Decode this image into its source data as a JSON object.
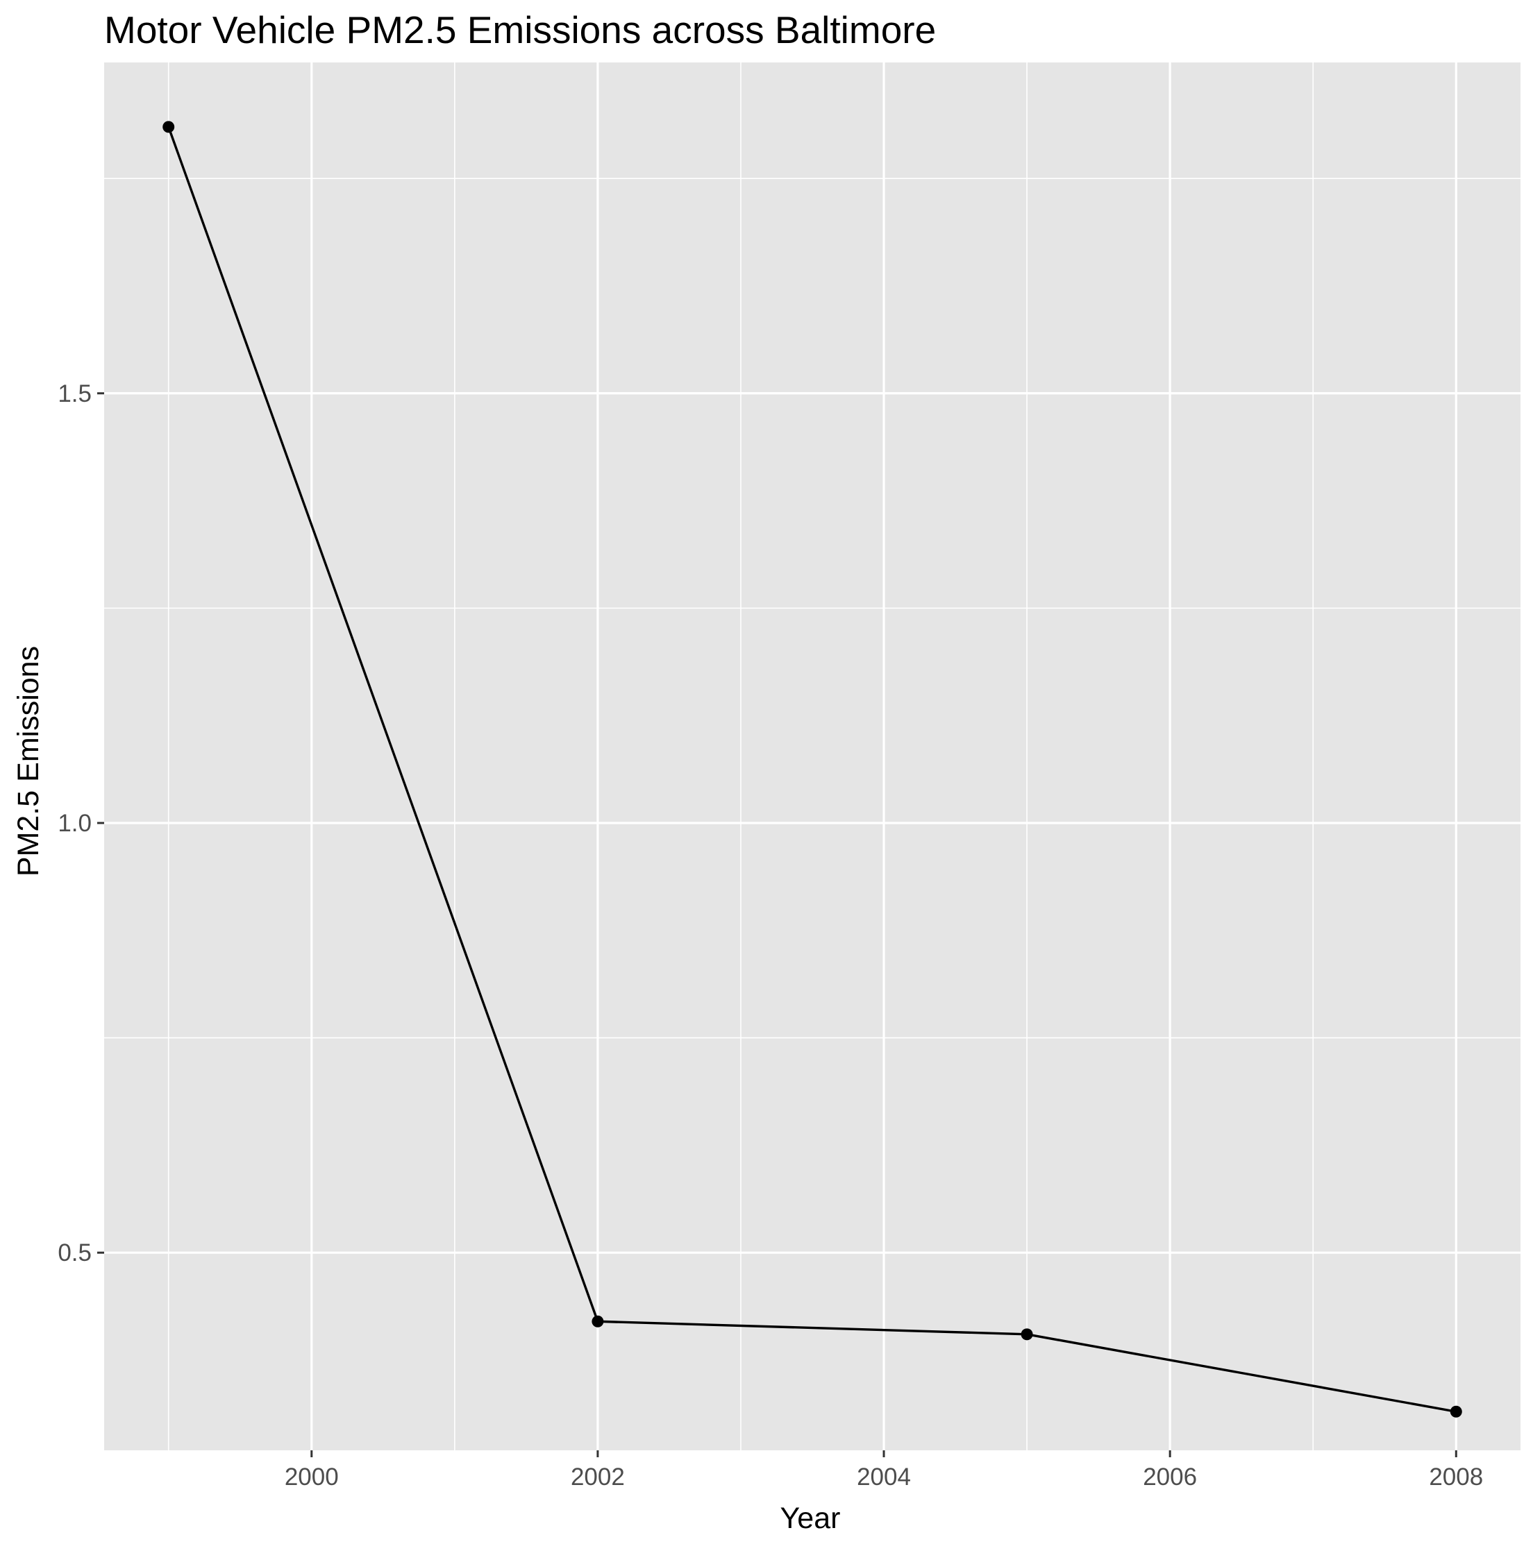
{
  "chart_data": {
    "type": "line",
    "title": "Motor Vehicle PM2.5 Emissions across Baltimore",
    "xlabel": "Year",
    "ylabel": "PM2.5 Emissions",
    "series": [
      {
        "x": [
          1999,
          2002,
          2005,
          2008
        ],
        "values": [
          1.81,
          0.42,
          0.405,
          0.315
        ]
      }
    ],
    "xlim": [
      1998.55,
      2008.45
    ],
    "ylim": [
      0.27,
      1.885
    ],
    "x_ticks": [
      2000,
      2002,
      2004,
      2006,
      2008
    ],
    "x_tick_labels": [
      "2000",
      "2002",
      "2004",
      "2006",
      "2008"
    ],
    "y_ticks": [
      0.5,
      1.0,
      1.5
    ],
    "y_tick_labels": [
      "0.5",
      "1.0",
      "1.5"
    ],
    "grid": true,
    "legend": "none",
    "colors": {
      "panel_background": "#e5e5e5",
      "grid_line": "#ffffff",
      "series_line": "#000000",
      "point": "#000000",
      "tick_label": "#4d4d4d",
      "axis_tick": "#333333"
    }
  }
}
